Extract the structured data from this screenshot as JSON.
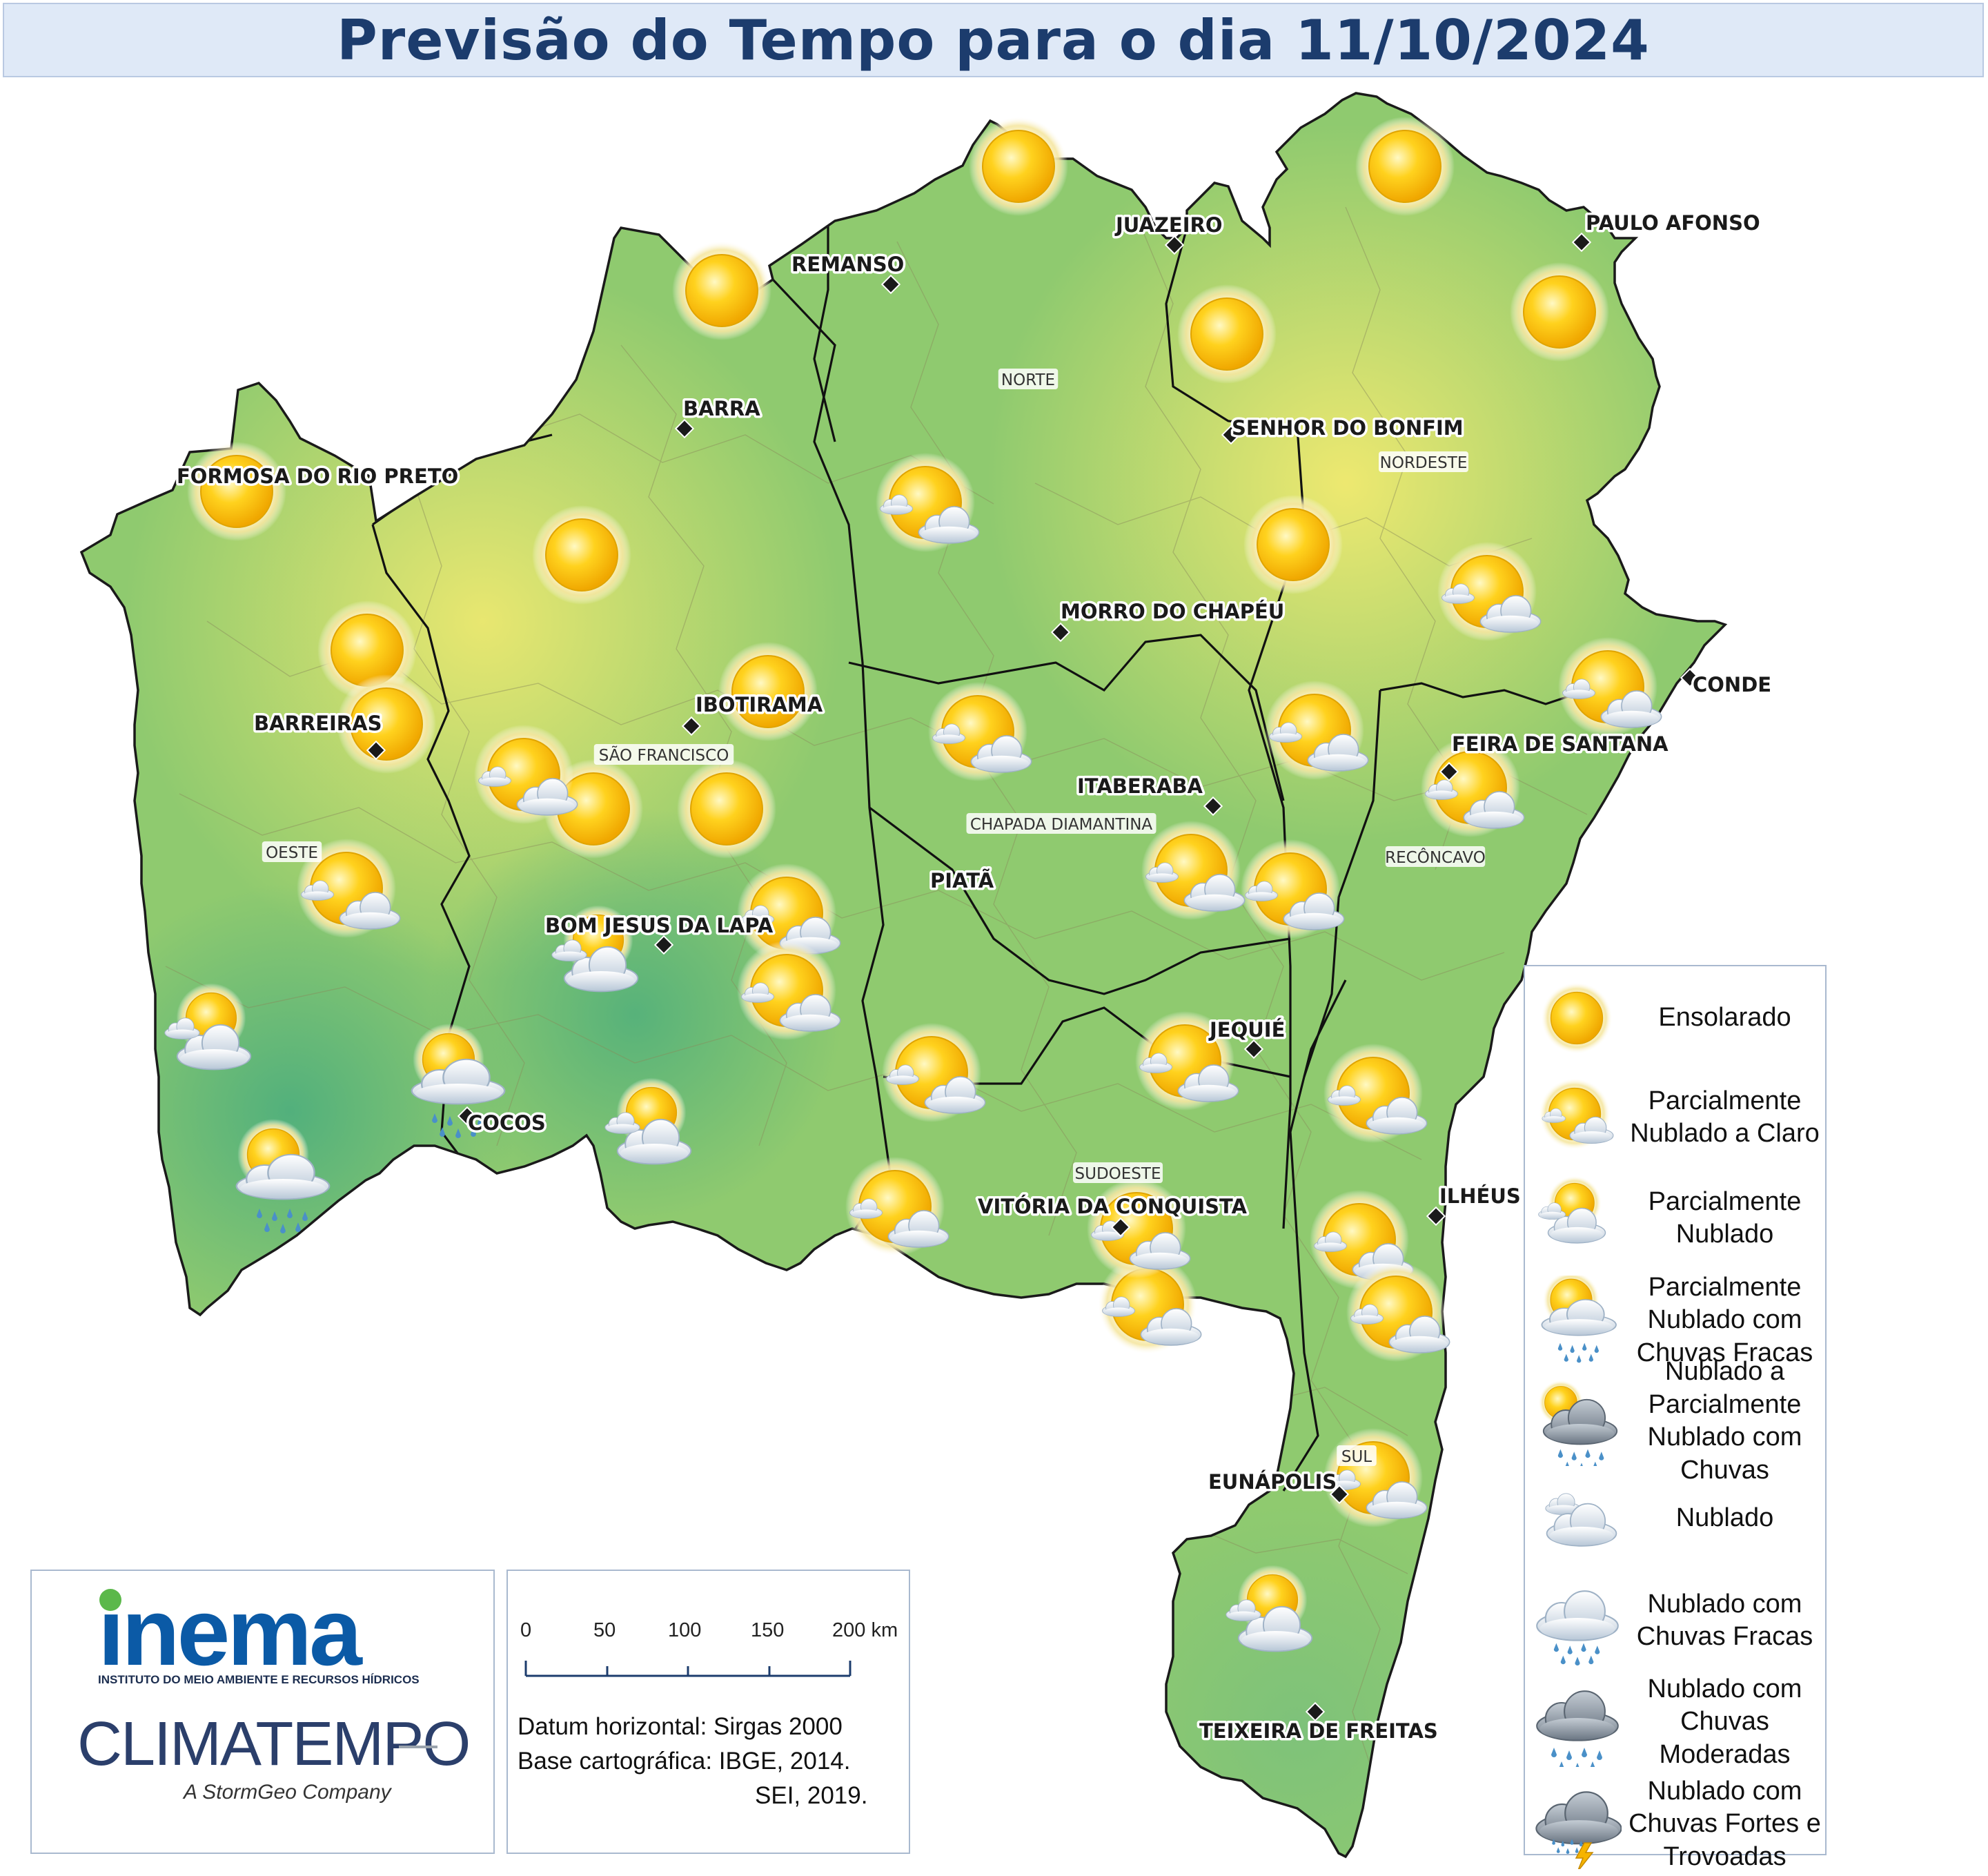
{
  "title": "Previsão do Tempo para o dia 11/10/2024",
  "cities": [
    {
      "name": "FORMOSA DO RIO PRETO"
    },
    {
      "name": "BARRA"
    },
    {
      "name": "REMANSO"
    },
    {
      "name": "JUAZEIRO"
    },
    {
      "name": "PAULO AFONSO"
    },
    {
      "name": "SENHOR DO BONFIM"
    },
    {
      "name": "MORRO DO CHAPÉU"
    },
    {
      "name": "IBOTIRAMA"
    },
    {
      "name": "BARREIRAS"
    },
    {
      "name": "CONDE"
    },
    {
      "name": "FEIRA DE SANTANA"
    },
    {
      "name": "ITABERABA"
    },
    {
      "name": "PIATÃ"
    },
    {
      "name": "BOM JESUS DA LAPA"
    },
    {
      "name": "JEQUIÉ"
    },
    {
      "name": "COCOS"
    },
    {
      "name": "ILHÉUS"
    },
    {
      "name": "VITÓRIA DA CONQUISTA"
    },
    {
      "name": "EUNÁPOLIS"
    },
    {
      "name": "TEIXEIRA DE FREITAS"
    }
  ],
  "regions": [
    "NORTE",
    "NORDESTE",
    "SÃO FRANCISCO",
    "OESTE",
    "CHAPADA DIAMANTINA",
    "RECÔNCAVO",
    "SUDOESTE",
    "SUL"
  ],
  "legend": [
    {
      "icon": "sunny-icon",
      "label": "Ensolarado"
    },
    {
      "icon": "partly-cloudy-clear-icon",
      "label": "Parcialmente Nublado a Claro"
    },
    {
      "icon": "partly-cloudy-icon",
      "label": "Parcialmente Nublado"
    },
    {
      "icon": "partly-cloudy-light-rain-icon",
      "label": "Parcialmente Nublado com Chuvas Fracas"
    },
    {
      "icon": "cloudy-partly-rain-icon",
      "label": "Nublado a Parcialmente Nublado com Chuvas"
    },
    {
      "icon": "cloudy-icon",
      "label": "Nublado"
    },
    {
      "icon": "cloudy-light-rain-icon",
      "label": "Nublado com Chuvas Fracas"
    },
    {
      "icon": "cloudy-moderate-rain-icon",
      "label": "Nublado com Chuvas Moderadas"
    },
    {
      "icon": "cloudy-storm-icon",
      "label": "Nublado com Chuvas Fortes e Trovoadas"
    }
  ],
  "forecast_icons": [
    "sun",
    "sun",
    "sun",
    "sun",
    "sun",
    "sun",
    "sun",
    "sun",
    "sun",
    "sun",
    "sun",
    "sun",
    "sun",
    "pcc",
    "pcc",
    "pcc",
    "pcc",
    "pcc",
    "pcc",
    "pcc",
    "pcc",
    "pcc",
    "pcc",
    "pcc",
    "pcc",
    "pcc",
    "pcc",
    "pcc",
    "pcc",
    "pcc",
    "pcc",
    "pcc",
    "pcc",
    "pcc",
    "pc",
    "pc",
    "pc",
    "pcr",
    "pcr",
    "pc"
  ],
  "logos": {
    "inema": "inema",
    "inema_subtitle": "INSTITUTO DO MEIO AMBIENTE E RECURSOS HÍDRICOS",
    "climatempo": "CLIMATEMPO",
    "stormgeo": "A StormGeo Company"
  },
  "scale": {
    "ticks": [
      "0",
      "50",
      "100",
      "150",
      "200 km"
    ]
  },
  "info": {
    "datum": "Datum horizontal: Sirgas 2000",
    "base": "Base cartográfica: IBGE, 2014.",
    "base2": "SEI, 2019."
  },
  "colors": {
    "dry": "#f7ec6f",
    "mid": "#b9dc66",
    "wet": "#54b27a",
    "border": "#1a1a1a",
    "title_text": "#1c3c6d"
  }
}
